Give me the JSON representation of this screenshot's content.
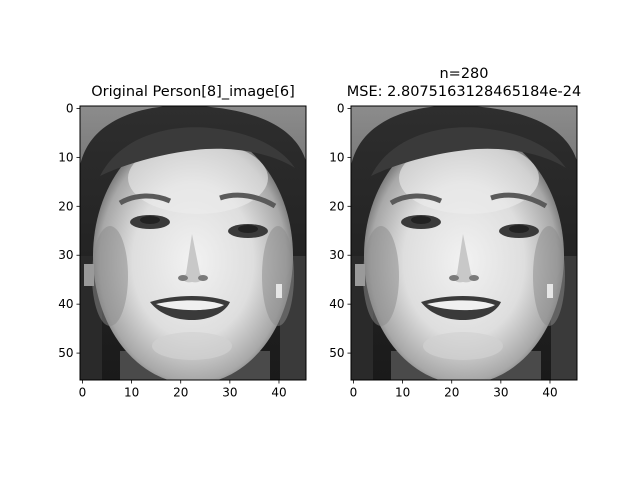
{
  "chart_data": [
    {
      "type": "image",
      "title": "Original Person[8]_image[6]",
      "image_shape": [
        56,
        46
      ],
      "xlim": [
        -0.5,
        45.5
      ],
      "ylim": [
        55.5,
        -0.5
      ],
      "x_ticks": [
        0,
        10,
        20,
        30,
        40
      ],
      "y_ticks": [
        0,
        10,
        20,
        30,
        40,
        50
      ],
      "x_tick_labels": [
        "0",
        "10",
        "20",
        "30",
        "40"
      ],
      "y_tick_labels": [
        "0",
        "10",
        "20",
        "30",
        "40",
        "50"
      ],
      "colormap": "gray",
      "grid": false
    },
    {
      "type": "image",
      "title_line1": "n=280",
      "title_line2": "MSE: 2.8075163128465184e-24",
      "image_shape": [
        56,
        46
      ],
      "xlim": [
        -0.5,
        45.5
      ],
      "ylim": [
        55.5,
        -0.5
      ],
      "x_ticks": [
        0,
        10,
        20,
        30,
        40
      ],
      "y_ticks": [
        0,
        10,
        20,
        30,
        40,
        50
      ],
      "x_tick_labels": [
        "0",
        "10",
        "20",
        "30",
        "40"
      ],
      "y_tick_labels": [
        "0",
        "10",
        "20",
        "30",
        "40",
        "50"
      ],
      "colormap": "gray",
      "grid": false
    }
  ]
}
